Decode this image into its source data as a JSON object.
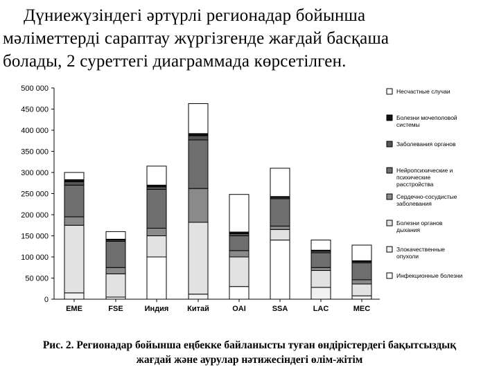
{
  "text": {
    "line1": "Дүниежүзіндегі әртүрлі регионадар бойынша",
    "line2": "мәліметтерді сараптау жүргізгенде жағдай басқаша",
    "line3": "болады, 2 суреттегі диаграммада көрсетілген.",
    "caption_line1": "Рис. 2. Регионадар бойынша еңбекке байланысты туған өндірістердегі бақытсыздық",
    "caption_line2": "жағдай және аурулар нәтижесіндегі өлім-жітім"
  },
  "colors": {
    "outline": "#000000",
    "grid": "#000000"
  },
  "chart_data": {
    "type": "bar",
    "stacked": true,
    "categories": [
      "EME",
      "FSE",
      "Индия",
      "Китай",
      "OAI",
      "SSA",
      "LAC",
      "MEC"
    ],
    "yticks": [
      "0",
      "50 000",
      "100 000",
      "150 000",
      "200 000",
      "250 000",
      "300 000",
      "350 000",
      "400 000",
      "450 000",
      "500 000"
    ],
    "ylim": [
      0,
      500000
    ],
    "grid": false,
    "legend_position": "right",
    "series": [
      {
        "name": "Инфекционные болезни",
        "color": "#ffffff",
        "values": [
          0,
          0,
          100000,
          0,
          30000,
          140000,
          0,
          0
        ]
      },
      {
        "name": "Злокачественные опухоли",
        "color": "#f2f2f2",
        "values": [
          15000,
          5000,
          0,
          12000,
          0,
          0,
          28000,
          8000
        ]
      },
      {
        "name": "Болезни органов дыхания",
        "color": "#e2e2e2",
        "values": [
          160000,
          55000,
          50000,
          170000,
          70000,
          25000,
          40000,
          28000
        ]
      },
      {
        "name": "Сердечно-сосудистые заболевания",
        "color": "#8a8a8a",
        "values": [
          20000,
          15000,
          18000,
          80000,
          15000,
          8000,
          7000,
          10000
        ]
      },
      {
        "name": "Нейропсихические и психические расстройства",
        "color": "#6e6e6e",
        "values": [
          75000,
          62000,
          92000,
          115000,
          35000,
          65000,
          35000,
          40000
        ]
      },
      {
        "name": "Заболевания органов",
        "color": "#555555",
        "values": [
          8000,
          3000,
          6000,
          10000,
          5000,
          3000,
          4000,
          3000
        ]
      },
      {
        "name": "Болезни мочеполовой системы",
        "color": "#111111",
        "values": [
          5000,
          2000,
          4000,
          5000,
          4000,
          2000,
          2000,
          2000
        ]
      },
      {
        "name": "Несчастные случаи",
        "color": "#ffffff",
        "values": [
          17000,
          18000,
          45000,
          71000,
          89000,
          67000,
          24000,
          37000
        ]
      }
    ]
  }
}
